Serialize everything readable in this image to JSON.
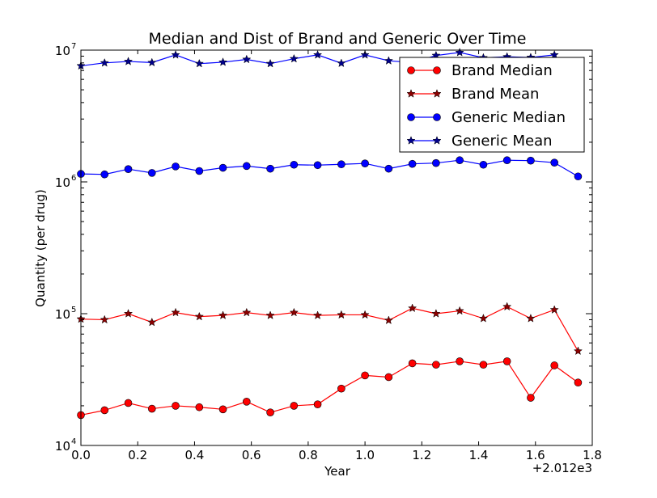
{
  "chart_data": {
    "type": "line",
    "title": "Median and Dist of Brand and Generic Over Time",
    "xlabel": "Year",
    "ylabel": "Quantity (per drug)",
    "x_offset_label": "+2.012e3",
    "xlim": [
      0,
      1.8
    ],
    "ylim": [
      10000,
      10000000
    ],
    "yscale": "log",
    "grid": false,
    "legend_position": "top-right",
    "x_ticks": [
      "0.0",
      "0.2",
      "0.4",
      "0.6",
      "0.8",
      "1.0",
      "1.2",
      "1.4",
      "1.6",
      "1.8"
    ],
    "y_ticks": [
      {
        "base": "10",
        "exp": "4"
      },
      {
        "base": "10",
        "exp": "5"
      },
      {
        "base": "10",
        "exp": "6"
      },
      {
        "base": "10",
        "exp": "7"
      }
    ],
    "x": [
      0.0,
      0.0833,
      0.1667,
      0.25,
      0.3333,
      0.4167,
      0.5,
      0.5833,
      0.6667,
      0.75,
      0.8333,
      0.9167,
      1.0,
      1.0833,
      1.1667,
      1.25,
      1.3333,
      1.4167,
      1.5,
      1.5833,
      1.6667,
      1.75
    ],
    "series": [
      {
        "name": "Brand Median",
        "color": "#ff0000",
        "line": "#ff0000",
        "marker": "circle",
        "values": [
          17000,
          18500,
          21000,
          19000,
          20000,
          19500,
          18800,
          21500,
          17800,
          20000,
          20500,
          27000,
          34000,
          33000,
          42000,
          41000,
          43500,
          41000,
          43500,
          23000,
          40500,
          30000
        ]
      },
      {
        "name": "Brand Mean",
        "color": "#8b0000",
        "line": "#ff0000",
        "marker": "star",
        "values": [
          91000,
          90000,
          100000,
          86000,
          102000,
          95000,
          97000,
          102000,
          97000,
          102000,
          97000,
          98000,
          98000,
          89000,
          110000,
          100000,
          105000,
          92000,
          113000,
          92000,
          107000,
          52000
        ]
      },
      {
        "name": "Generic Median",
        "color": "#0000ff",
        "line": "#0000ff",
        "marker": "circle",
        "values": [
          1150000,
          1140000,
          1250000,
          1170000,
          1310000,
          1210000,
          1280000,
          1320000,
          1260000,
          1350000,
          1340000,
          1360000,
          1380000,
          1260000,
          1370000,
          1390000,
          1460000,
          1350000,
          1460000,
          1450000,
          1400000,
          1100000
        ]
      },
      {
        "name": "Generic Mean",
        "color": "#00008b",
        "line": "#0000ff",
        "marker": "star",
        "values": [
          7600000,
          8000000,
          8200000,
          8050000,
          9200000,
          7900000,
          8100000,
          8500000,
          7900000,
          8600000,
          9200000,
          7950000,
          9200000,
          8300000,
          8050000,
          9100000,
          9600000,
          8750000,
          8900000,
          8800000,
          9200000,
          null
        ]
      }
    ]
  }
}
